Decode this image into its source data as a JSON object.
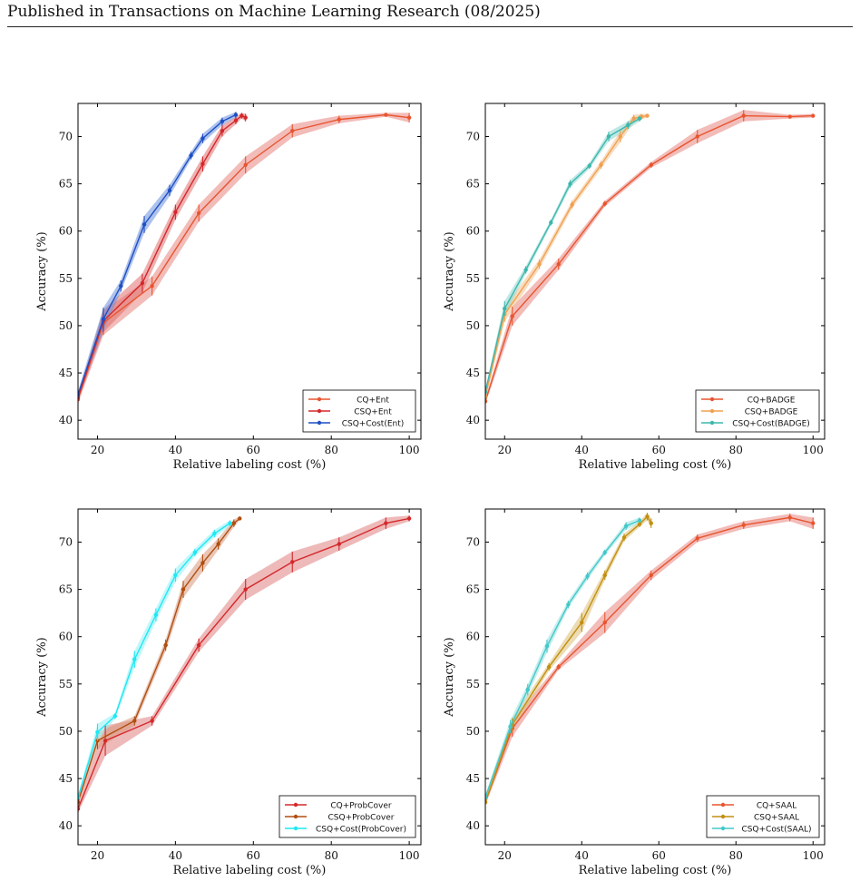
{
  "header": "Published in Transactions on Machine Learning Research (08/2025)",
  "chart_data": [
    {
      "type": "line",
      "xlabel": "Relative labeling cost (%)",
      "ylabel": "Accuracy (%)",
      "xlim": [
        15,
        103
      ],
      "ylim": [
        38,
        73.5
      ],
      "xticks": [
        20,
        40,
        60,
        80,
        100
      ],
      "yticks": [
        40,
        45,
        50,
        55,
        60,
        65,
        70
      ],
      "legend_position": "bottom-right",
      "series": [
        {
          "name": "CQ+Ent",
          "color": "#e8552f",
          "band": "#e8857f",
          "x": [
            15,
            21.5,
            34,
            46,
            58,
            70,
            82,
            94,
            100
          ],
          "y": [
            42.2,
            50.3,
            54.2,
            61.9,
            67.0,
            70.6,
            71.8,
            72.3,
            72.0
          ],
          "err": [
            0.4,
            1.3,
            1.0,
            0.9,
            0.9,
            0.7,
            0.4,
            0.2,
            0.5
          ]
        },
        {
          "name": "CSQ+Ent",
          "color": "#d4282b",
          "band": "#e07070",
          "x": [
            15,
            21.5,
            31.5,
            40,
            47,
            52,
            55.5,
            57,
            58
          ],
          "y": [
            42.4,
            50.5,
            54.5,
            62.0,
            67.1,
            70.6,
            71.7,
            72.2,
            72.0
          ],
          "err": [
            0.3,
            1.2,
            1.0,
            0.8,
            0.8,
            0.6,
            0.4,
            0.3,
            0.4
          ]
        },
        {
          "name": "CSQ+Cost(Ent)",
          "color": "#1f4fc4",
          "band": "#6a8fdc",
          "x": [
            15,
            21.5,
            26,
            32,
            38.5,
            44,
            47,
            52,
            55.5
          ],
          "y": [
            42.7,
            50.7,
            54.2,
            60.7,
            64.3,
            68.0,
            69.8,
            71.6,
            72.3
          ],
          "err": [
            0.4,
            1.2,
            0.6,
            0.9,
            0.6,
            0.4,
            0.5,
            0.4,
            0.3
          ]
        }
      ]
    },
    {
      "type": "line",
      "xlabel": "Relative labeling cost (%)",
      "ylabel": "Accuracy (%)",
      "xlim": [
        15,
        103
      ],
      "ylim": [
        38,
        73.5
      ],
      "xticks": [
        20,
        40,
        60,
        80,
        100
      ],
      "yticks": [
        40,
        45,
        50,
        55,
        60,
        65,
        70
      ],
      "legend_position": "bottom-right",
      "series": [
        {
          "name": "CQ+BADGE",
          "color": "#e8552f",
          "band": "#e8857f",
          "x": [
            15,
            22,
            34,
            46,
            58,
            70,
            82,
            94,
            100
          ],
          "y": [
            42.0,
            51.0,
            56.5,
            62.9,
            67.0,
            70.0,
            72.2,
            72.1,
            72.2
          ],
          "err": [
            0.3,
            1.0,
            0.6,
            0.3,
            0.3,
            0.7,
            0.6,
            0.2,
            0.2
          ]
        },
        {
          "name": "CSQ+BADGE",
          "color": "#f0a050",
          "band": "#f4c08a",
          "x": [
            15,
            20,
            29,
            37.5,
            45,
            50,
            53.5,
            55.5,
            57
          ],
          "y": [
            42.5,
            51.2,
            56.5,
            62.8,
            67.0,
            70.0,
            71.9,
            72.1,
            72.2
          ],
          "err": [
            0.3,
            0.8,
            0.5,
            0.4,
            0.4,
            0.6,
            0.4,
            0.3,
            0.2
          ]
        },
        {
          "name": "CSQ+Cost(BADGE)",
          "color": "#3cb8ac",
          "band": "#8ad6cf",
          "x": [
            15,
            20,
            25.5,
            32,
            37,
            42,
            47,
            52,
            55
          ],
          "y": [
            43.0,
            51.8,
            55.9,
            60.9,
            65.0,
            66.9,
            70.0,
            71.2,
            71.9
          ],
          "err": [
            0.3,
            0.8,
            0.4,
            0.3,
            0.4,
            0.3,
            0.5,
            0.4,
            0.3
          ]
        }
      ]
    },
    {
      "type": "line",
      "xlabel": "Relative labeling cost (%)",
      "ylabel": "Accuracy (%)",
      "xlim": [
        15,
        103
      ],
      "ylim": [
        38,
        73.5
      ],
      "xticks": [
        20,
        40,
        60,
        80,
        100
      ],
      "yticks": [
        40,
        45,
        50,
        55,
        60,
        65,
        70
      ],
      "legend_position": "bottom-right",
      "series": [
        {
          "name": "CQ+ProbCover",
          "color": "#d4282b",
          "band": "#e08080",
          "x": [
            15,
            22,
            34,
            46,
            58,
            70,
            82,
            94,
            100
          ],
          "y": [
            41.8,
            49.0,
            51.1,
            59.1,
            65.0,
            67.9,
            69.8,
            72.0,
            72.5
          ],
          "err": [
            0.4,
            1.6,
            0.5,
            0.7,
            1.1,
            1.1,
            0.7,
            0.6,
            0.3
          ]
        },
        {
          "name": "CSQ+ProbCover",
          "color": "#b04e10",
          "band": "#d9987a",
          "x": [
            15,
            20,
            29.5,
            37.5,
            42,
            47,
            51,
            55,
            56.5
          ],
          "y": [
            42.5,
            49.0,
            51.1,
            59.1,
            65.0,
            67.8,
            69.8,
            72.0,
            72.5
          ],
          "err": [
            0.3,
            0.9,
            0.5,
            0.6,
            0.9,
            0.9,
            0.6,
            0.4,
            0.2
          ]
        },
        {
          "name": "CSQ+Cost(ProbCover)",
          "color": "#1ee8f4",
          "band": "#8ff0f6",
          "x": [
            15,
            20,
            24.5,
            29.5,
            35,
            40,
            45,
            50,
            54
          ],
          "y": [
            43.0,
            49.9,
            51.6,
            57.6,
            62.3,
            66.5,
            68.9,
            70.9,
            72.0
          ],
          "err": [
            0.3,
            0.9,
            0.3,
            0.9,
            0.7,
            0.7,
            0.4,
            0.4,
            0.3
          ]
        }
      ]
    },
    {
      "type": "line",
      "xlabel": "Relative labeling cost (%)",
      "ylabel": "Accuracy (%)",
      "xlim": [
        15,
        103
      ],
      "ylim": [
        38,
        73.5
      ],
      "xticks": [
        20,
        40,
        60,
        80,
        100
      ],
      "yticks": [
        40,
        45,
        50,
        55,
        60,
        65,
        70
      ],
      "legend_position": "bottom-right",
      "series": [
        {
          "name": "CQ+SAAL",
          "color": "#e8552f",
          "band": "#e8857f",
          "x": [
            15,
            22,
            34,
            46,
            58,
            70,
            82,
            94,
            100
          ],
          "y": [
            42.5,
            50.3,
            56.8,
            61.5,
            66.5,
            70.4,
            71.8,
            72.6,
            72.0
          ],
          "err": [
            0.3,
            0.9,
            0.3,
            1.1,
            0.5,
            0.4,
            0.4,
            0.4,
            0.6
          ]
        },
        {
          "name": "CSQ+SAAL",
          "color": "#c28f10",
          "band": "#dcbf74",
          "x": [
            15,
            22,
            31.5,
            40,
            46,
            51,
            55,
            57,
            58
          ],
          "y": [
            42.5,
            50.7,
            56.8,
            61.5,
            66.5,
            70.5,
            71.9,
            72.7,
            72.0
          ],
          "err": [
            0.3,
            0.7,
            0.4,
            1.0,
            0.5,
            0.4,
            0.3,
            0.4,
            0.5
          ]
        },
        {
          "name": "CSQ+Cost(SAAL)",
          "color": "#44c8c8",
          "band": "#98e0e0",
          "x": [
            15,
            21.5,
            26,
            31,
            36.5,
            41.5,
            46,
            51.5,
            55
          ],
          "y": [
            43.0,
            50.5,
            54.4,
            59.0,
            63.4,
            66.4,
            68.9,
            71.7,
            72.3
          ],
          "err": [
            0.3,
            0.7,
            0.6,
            0.7,
            0.4,
            0.4,
            0.3,
            0.4,
            0.3
          ]
        }
      ]
    }
  ]
}
